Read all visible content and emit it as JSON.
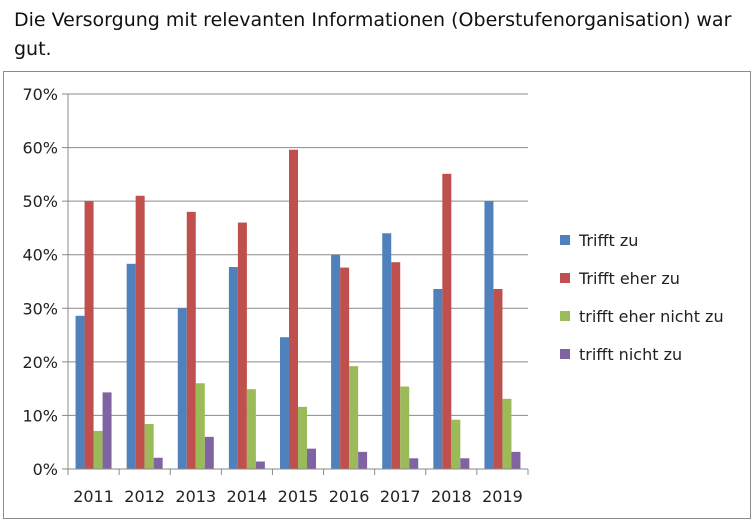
{
  "title": "Die Versorgung mit relevanten Informationen (Oberstufenorganisation) war gut.",
  "chart_data": {
    "type": "bar",
    "categories": [
      "2011",
      "2012",
      "2013",
      "2014",
      "2015",
      "2016",
      "2017",
      "2018",
      "2019"
    ],
    "series": [
      {
        "name": "Trifft zu",
        "color": "#4f81bd",
        "values": [
          28.6,
          38.3,
          30.0,
          37.7,
          24.6,
          40.0,
          44.0,
          33.6,
          50.0
        ]
      },
      {
        "name": "Trifft eher zu",
        "color": "#c0504d",
        "values": [
          50.0,
          51.0,
          48.0,
          46.0,
          59.6,
          37.6,
          38.6,
          55.1,
          33.6
        ]
      },
      {
        "name": "trifft eher nicht zu",
        "color": "#9bbb59",
        "values": [
          7.1,
          8.4,
          16.0,
          14.9,
          11.6,
          19.2,
          15.4,
          9.2,
          13.1
        ]
      },
      {
        "name": "trifft nicht zu",
        "color": "#8064a2",
        "values": [
          14.3,
          2.1,
          6.0,
          1.4,
          3.8,
          3.2,
          2.0,
          2.0,
          3.2
        ]
      }
    ],
    "ylim": [
      0,
      70
    ],
    "yticks": [
      "0%",
      "10%",
      "20%",
      "30%",
      "40%",
      "50%",
      "60%",
      "70%"
    ],
    "grid": true,
    "legend_position": "right"
  }
}
